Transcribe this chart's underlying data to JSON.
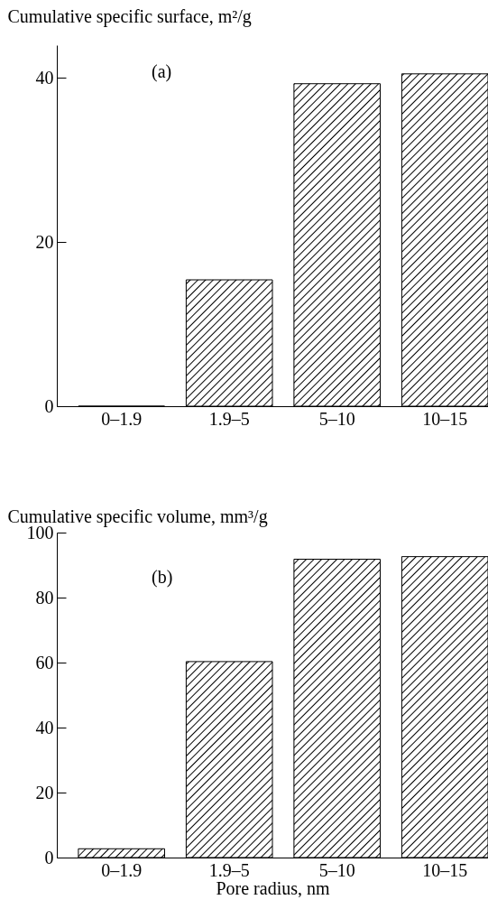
{
  "chart_data": [
    {
      "type": "bar",
      "ylabel": "Cumulative specific surface, m²/g",
      "categories": [
        "0–1.9",
        "1.9–5",
        "5–10",
        "10–15"
      ],
      "values": [
        0,
        15.4,
        39.3,
        40.5
      ],
      "color": "#000000",
      "ylim": [
        0,
        44
      ],
      "yticks": [
        0,
        20,
        40
      ],
      "annotations": [
        "(a)"
      ]
    },
    {
      "type": "bar",
      "ylabel": "Cumulative specific volume, mm³/g",
      "xlabel": "Pore radius, nm",
      "categories": [
        "0–1.9",
        "1.9–5",
        "5–10",
        "10–15"
      ],
      "values": [
        2.7,
        60.3,
        91.8,
        92.6
      ],
      "color": "#000000",
      "ylim": [
        0,
        100
      ],
      "yticks": [
        0,
        20,
        40,
        60,
        80,
        100
      ],
      "annotations": [
        "(b)"
      ]
    }
  ]
}
